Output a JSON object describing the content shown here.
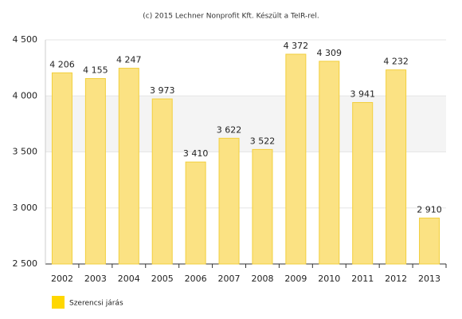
{
  "chart_data": {
    "type": "bar",
    "title": "(c) 2015 Lechner Nonprofit Kft. Készült a TeIR-rel.",
    "categories": [
      "2002",
      "2003",
      "2004",
      "2005",
      "2006",
      "2007",
      "2008",
      "2009",
      "2010",
      "2011",
      "2012",
      "2013"
    ],
    "series": [
      {
        "name": "Szerencsi járás",
        "color": "#fbe283",
        "border_color": "#f2cf3d",
        "legend_color": "#ffd700",
        "values": [
          4206,
          4155,
          4247,
          3973,
          3410,
          3622,
          3522,
          4372,
          4309,
          3941,
          4232,
          2910
        ],
        "value_labels": [
          "4 206",
          "4 155",
          "4 247",
          "3 973",
          "3 410",
          "3 622",
          "3 522",
          "4 372",
          "4 309",
          "3 941",
          "4 232",
          "2 910"
        ]
      }
    ],
    "ylim": [
      2500,
      4500
    ],
    "yticks": [
      {
        "value": 2500,
        "label": "2 500"
      },
      {
        "value": 3000,
        "label": "3 000"
      },
      {
        "value": 3500,
        "label": "3 500"
      },
      {
        "value": 4000,
        "label": "4 000"
      },
      {
        "value": 4500,
        "label": "4 500"
      }
    ],
    "grid": true
  }
}
